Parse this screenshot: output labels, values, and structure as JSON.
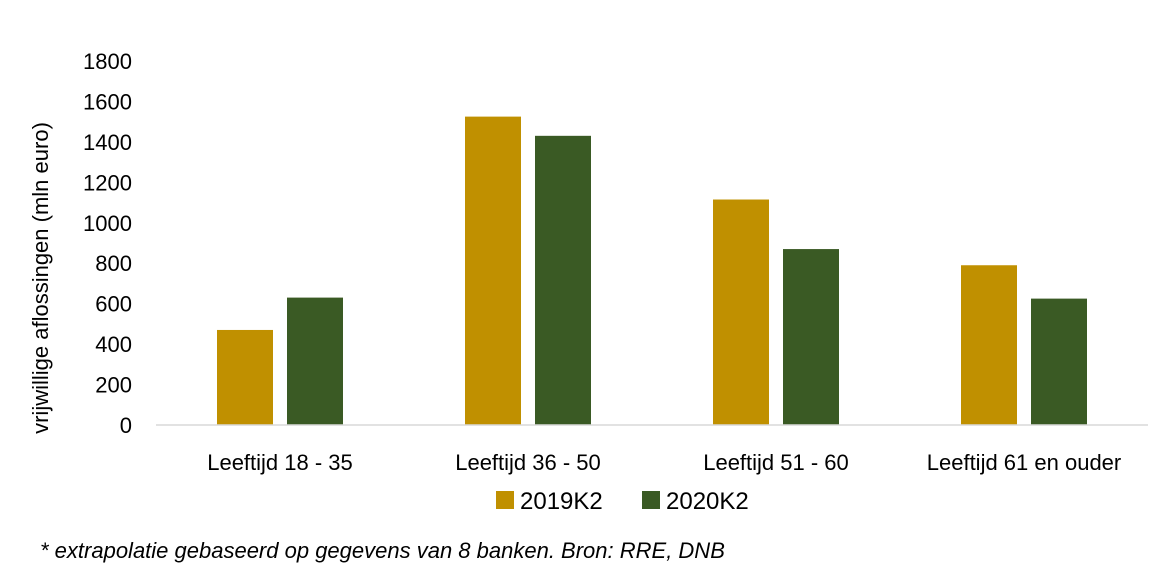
{
  "chart_data": {
    "type": "bar",
    "categories": [
      "Leeftijd 18 - 35",
      "Leeftijd 36 - 50",
      "Leeftijd 51 - 60",
      "Leeftijd 61 en ouder"
    ],
    "series": [
      {
        "name": "2019K2",
        "values": [
          470,
          1525,
          1115,
          790
        ],
        "color": "#c09000"
      },
      {
        "name": "2020K2",
        "values": [
          630,
          1430,
          870,
          625
        ],
        "color": "#3a5a24"
      }
    ],
    "title": "",
    "xlabel": "",
    "ylabel": "vrijwillige aflossingen (mln euro)",
    "ylim": [
      0,
      1800
    ],
    "yticks": [
      0,
      200,
      400,
      600,
      800,
      1000,
      1200,
      1400,
      1600,
      1800
    ],
    "grid": false,
    "legend": "bottom"
  },
  "footnote": "* extrapolatie gebaseerd op gegevens van 8 banken. Bron: RRE, DNB"
}
